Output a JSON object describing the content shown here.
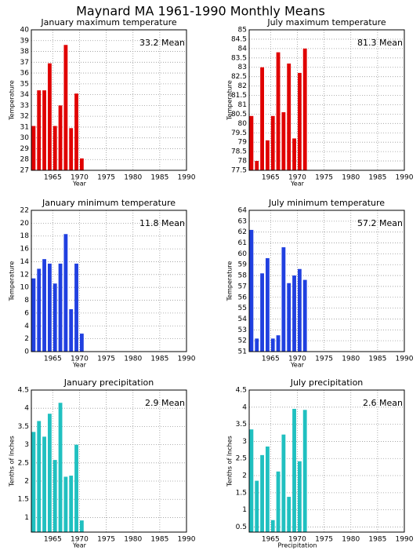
{
  "title": "Maynard MA  1961-1990 Monthly Means",
  "chart_data": [
    {
      "type": "bar",
      "title": "January maximum temperature",
      "annotation": "33.2 Mean",
      "xlabel": "Year",
      "ylabel": "Temperature",
      "color": "#e00000",
      "grid": true,
      "x": [
        1961,
        1962,
        1963,
        1964,
        1965,
        1966,
        1967,
        1968,
        1969,
        1970
      ],
      "values": [
        31.1,
        34.4,
        34.4,
        36.9,
        31.1,
        33.0,
        38.6,
        30.9,
        34.1,
        28.1
      ],
      "xlim": [
        1961,
        1990
      ],
      "xticks": [
        1965,
        1970,
        1975,
        1980,
        1985,
        1990
      ],
      "ylim": [
        27,
        40
      ],
      "yticks": [
        27,
        28,
        29,
        30,
        31,
        32,
        33,
        34,
        35,
        36,
        37,
        38,
        39,
        40
      ]
    },
    {
      "type": "bar",
      "title": "July maximum temperature",
      "annotation": "81.3 Mean",
      "xlabel": "Year",
      "ylabel": "Temperature",
      "color": "#e00000",
      "grid": true,
      "x": [
        1961,
        1962,
        1963,
        1964,
        1965,
        1966,
        1967,
        1968,
        1969,
        1970,
        1971
      ],
      "values": [
        80.4,
        78.0,
        83.0,
        79.1,
        80.4,
        83.8,
        80.6,
        83.2,
        79.2,
        82.7,
        84.0
      ],
      "xlim": [
        1961,
        1990
      ],
      "xticks": [
        1965,
        1970,
        1975,
        1980,
        1985,
        1990
      ],
      "ylim": [
        77.5,
        85
      ],
      "yticks": [
        77.5,
        78,
        78.5,
        79,
        79.5,
        80,
        80.5,
        81,
        81.5,
        82,
        82.5,
        83,
        83.5,
        84,
        84.5,
        85
      ]
    },
    {
      "type": "bar",
      "title": "January minimum temperature",
      "annotation": "11.8 Mean",
      "xlabel": "Year",
      "ylabel": "Temperature",
      "color": "#2040e0",
      "grid": true,
      "x": [
        1961,
        1962,
        1963,
        1964,
        1965,
        1966,
        1967,
        1968,
        1969,
        1970
      ],
      "values": [
        11.4,
        12.9,
        14.4,
        13.7,
        10.6,
        13.7,
        18.3,
        6.6,
        13.7,
        2.8
      ],
      "xlim": [
        1961,
        1990
      ],
      "xticks": [
        1965,
        1970,
        1975,
        1980,
        1985,
        1990
      ],
      "ylim": [
        0,
        22
      ],
      "yticks": [
        0,
        2,
        4,
        6,
        8,
        10,
        12,
        14,
        16,
        18,
        20,
        22
      ]
    },
    {
      "type": "bar",
      "title": "July minimum temperature",
      "annotation": "57.2 Mean",
      "xlabel": "Year",
      "ylabel": "Temperature",
      "color": "#2040e0",
      "grid": true,
      "x": [
        1961,
        1962,
        1963,
        1964,
        1965,
        1966,
        1967,
        1968,
        1969,
        1970,
        1971
      ],
      "values": [
        62.2,
        52.2,
        58.2,
        59.6,
        52.2,
        52.5,
        60.6,
        57.3,
        58.0,
        58.6,
        57.6
      ],
      "xlim": [
        1961,
        1990
      ],
      "xticks": [
        1965,
        1970,
        1975,
        1980,
        1985,
        1990
      ],
      "ylim": [
        51,
        64
      ],
      "yticks": [
        51,
        52,
        53,
        54,
        55,
        56,
        57,
        58,
        59,
        60,
        61,
        62,
        63,
        64
      ]
    },
    {
      "type": "bar",
      "title": "January precipitation",
      "annotation": "2.9 Mean",
      "xlabel": "Year",
      "ylabel": "Tenths of Inches",
      "color": "#20c0c0",
      "grid": true,
      "x": [
        1961,
        1962,
        1963,
        1964,
        1965,
        1966,
        1967,
        1968,
        1969,
        1970
      ],
      "values": [
        3.35,
        3.65,
        3.22,
        3.85,
        2.58,
        4.15,
        2.12,
        2.15,
        3.0,
        0.92
      ],
      "xlim": [
        1961,
        1990
      ],
      "xticks": [
        1965,
        1970,
        1975,
        1980,
        1985,
        1990
      ],
      "ylim": [
        0.6,
        4.5
      ],
      "yticks": [
        1,
        1.5,
        2,
        2.5,
        3,
        3.5,
        4,
        4.5
      ]
    },
    {
      "type": "bar",
      "title": "July precipitation",
      "annotation": "2.6 Mean",
      "xlabel": "Precipitation",
      "ylabel": "Tenths of Inches",
      "color": "#20c0c0",
      "grid": true,
      "x": [
        1961,
        1962,
        1963,
        1964,
        1965,
        1966,
        1967,
        1968,
        1969,
        1970,
        1971
      ],
      "values": [
        3.35,
        1.85,
        2.6,
        2.85,
        0.7,
        2.12,
        3.2,
        1.38,
        3.95,
        2.42,
        3.92
      ],
      "xlim": [
        1961,
        1990
      ],
      "xticks": [
        1965,
        1970,
        1975,
        1980,
        1985,
        1990
      ],
      "ylim": [
        0.35,
        4.5
      ],
      "yticks": [
        0.5,
        1,
        1.5,
        2,
        2.5,
        3,
        3.5,
        4,
        4.5
      ]
    }
  ]
}
